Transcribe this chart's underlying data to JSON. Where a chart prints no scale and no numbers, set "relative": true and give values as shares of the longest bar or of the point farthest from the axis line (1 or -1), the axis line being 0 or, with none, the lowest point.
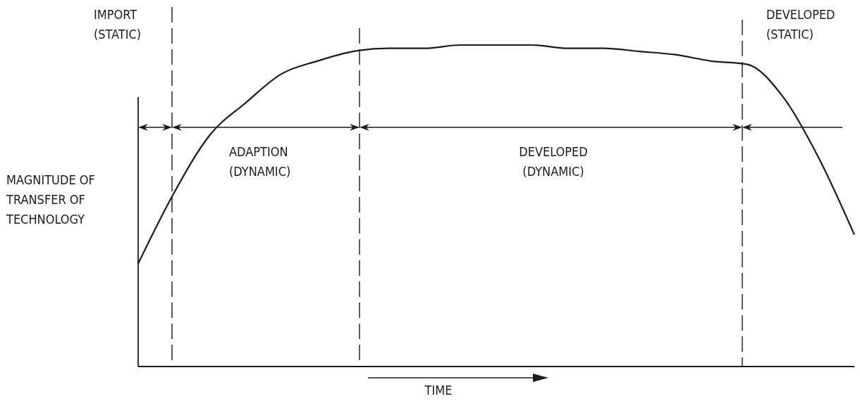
{
  "chart_data": {
    "type": "line",
    "relative": true,
    "xlabel": "TIME",
    "ylabel": "MAGNITUDE OF\nTRANSFER OF\nTECHNOLOGY",
    "categories": [
      null,
      null,
      null,
      null,
      null,
      null,
      null,
      null,
      null,
      null,
      null,
      null,
      null,
      null,
      null,
      null,
      null,
      null,
      null,
      null,
      null
    ],
    "series": [
      {
        "color": "#1a1a1a",
        "values": [
          0.32,
          0.54,
          0.72,
          0.82,
          0.91,
          0.95,
          0.98,
          0.99,
          0.99,
          1,
          1,
          1,
          0.99,
          0.99,
          0.98,
          0.97,
          0.95,
          0.94,
          0.84,
          0.65,
          0.41
        ]
      }
    ],
    "annotations": [
      "IMPORT\n(STATIC)",
      "ADAPTION\n(DYNAMIC)",
      "DEVELOPED\n(DYNAMIC)",
      "DEVELOPED\n(STATIC)"
    ],
    "marker": "none",
    "line_style": "solid"
  }
}
